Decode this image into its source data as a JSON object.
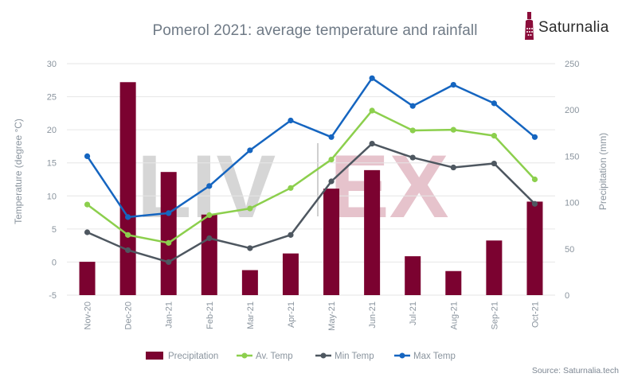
{
  "brand": {
    "name": "Saturnalia",
    "logo_icon": "wine-bottle-icon",
    "logo_color": "#8b0d3a"
  },
  "watermark": {
    "text_left": "LIV",
    "text_right": "EX"
  },
  "source_text": "Source: Saturnalia.tech",
  "colors": {
    "precipitation": "#7b0230",
    "av_temp": "#8ccf4d",
    "min_temp": "#4e5760",
    "max_temp": "#1565c0",
    "grid": "#e6e6e6",
    "axis_text": "#8a949e"
  },
  "chart_data": {
    "type": "bar+line",
    "title": "Pomerol 2021: average temperature and rainfall",
    "categories": [
      "Nov-20",
      "Dec-20",
      "Jan-21",
      "Feb-21",
      "Mar-21",
      "Apr-21",
      "May-21",
      "Jun-21",
      "Jul-21",
      "Aug-21",
      "Sep-21",
      "Oct-21"
    ],
    "ylabel_left": "Temperature (degree °C)",
    "ylabel_right": "Precipitation (mm)",
    "ylim_left": [
      -5,
      30
    ],
    "ylim_right": [
      0,
      250
    ],
    "yticks_left": [
      "-5",
      "0",
      "5",
      "10",
      "15",
      "20",
      "25",
      "30"
    ],
    "yticks_right": [
      "0",
      "50",
      "100",
      "150",
      "200",
      "250"
    ],
    "grid": true,
    "legend_position": "bottom",
    "series": [
      {
        "name": "Precipitation",
        "type": "bar",
        "axis": "right",
        "values": [
          36,
          230,
          133,
          87,
          27,
          45,
          115,
          135,
          42,
          26,
          59,
          101
        ]
      },
      {
        "name": "Av. Temp",
        "type": "line",
        "axis": "left",
        "values": [
          8.7,
          4.1,
          2.9,
          7.1,
          8.1,
          11.2,
          15.5,
          22.9,
          19.9,
          20.0,
          19.1,
          12.5
        ]
      },
      {
        "name": "Min Temp",
        "type": "line",
        "axis": "left",
        "values": [
          4.5,
          1.8,
          0.0,
          3.6,
          2.1,
          4.1,
          12.2,
          17.9,
          15.8,
          14.3,
          14.9,
          8.8
        ]
      },
      {
        "name": "Max Temp",
        "type": "line",
        "axis": "left",
        "values": [
          16.0,
          6.8,
          7.4,
          11.5,
          16.9,
          21.4,
          18.9,
          27.8,
          23.6,
          26.8,
          24.0,
          18.9
        ]
      }
    ]
  }
}
